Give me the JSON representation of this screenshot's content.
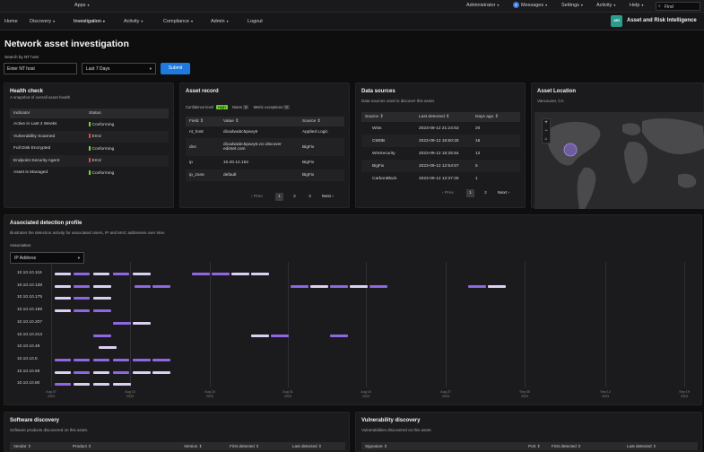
{
  "topbar": {
    "apps": "Apps",
    "administrator": "Administrator",
    "messages_count": "6",
    "messages": "Messages",
    "settings": "Settings",
    "activity": "Activity",
    "help": "Help",
    "find_placeholder": "Find"
  },
  "nav": {
    "home": "Home",
    "discovery": "Discovery",
    "investigation": "Investigation",
    "activity": "Activity",
    "compliance": "Compliance",
    "admin": "Admin",
    "logout": "Logout",
    "app_badge": "ARI",
    "app_name": "Asset and Risk Intelligence"
  },
  "page": {
    "title": "Network asset investigation",
    "search_label": "Search by NT host",
    "search_placeholder": "Enter NT host",
    "range_value": "Last 7 Days",
    "submit": "Submit"
  },
  "health": {
    "title": "Health check",
    "subtitle": "A snapshot of overall asset health",
    "col_indicator": "Indicator",
    "col_status": "Status",
    "rows": [
      {
        "indicator": "Active in Last 2 Weeks",
        "status": "Conforming",
        "color": "#7bd13a"
      },
      {
        "indicator": "Vulnerability Scanned",
        "status": "Error",
        "color": "#e0443e"
      },
      {
        "indicator": "Full Disk Encrypted",
        "status": "Conforming",
        "color": "#7bd13a"
      },
      {
        "indicator": "Endpoint Security Agent",
        "status": "Error",
        "color": "#e0443e"
      },
      {
        "indicator": "Asset is Managed",
        "status": "Conforming",
        "color": "#7bd13a"
      }
    ]
  },
  "record": {
    "title": "Asset record",
    "confidence_label": "Confidence level",
    "confidence_value": "High",
    "notes_label": "Notes",
    "notes_count": "0",
    "metric_label": "Metric exceptions",
    "metric_count": "0",
    "col_field": "Field",
    "col_value": "Value",
    "col_source": "Source",
    "rows": [
      {
        "field": "nt_host",
        "value": "dicadwabc5pavy6",
        "source": "Applied Logic"
      },
      {
        "field": "dns",
        "value": "dicadwabc5pavy6.vcr.discover",
        "value2": "edintel.com",
        "source": "BigFix"
      },
      {
        "field": "ip",
        "value": "10.20.12.152",
        "source": "BigFix"
      },
      {
        "field": "ip_zone",
        "value": "default",
        "source": "BigFix"
      }
    ],
    "prev": "Prev",
    "pages": [
      "1",
      "2",
      "3"
    ],
    "next": "Next"
  },
  "sources": {
    "title": "Data sources",
    "subtitle": "Data sources used to discover this asset.",
    "col_source": "Source",
    "col_last": "Last detected",
    "col_days": "Days ago",
    "rows": [
      {
        "source": "Wiss",
        "last": "2023-09-12 21:24:53",
        "days": "20"
      },
      {
        "source": "CMDB",
        "last": "2023-09-12 16:50:25",
        "days": "16"
      },
      {
        "source": "WinSecurity",
        "last": "2023-09-12 15:25:54",
        "days": "12"
      },
      {
        "source": "BigFix",
        "last": "2023-09-12 12:54:57",
        "days": "5"
      },
      {
        "source": "CarbonBlack",
        "last": "2023-09-12 12:37:25",
        "days": "1"
      }
    ],
    "prev": "Prev",
    "pages": [
      "1",
      "2"
    ],
    "next": "Next"
  },
  "location": {
    "title": "Asset Location",
    "subtitle": "Vancouver, CA",
    "zoom_in": "+",
    "zoom_out": "−"
  },
  "detection": {
    "title": "Associated detection profile",
    "subtitle": "Illustrates the detection activity for associated Users, IP and MAC addresses over time.",
    "assoc_label": "Association",
    "assoc_value": "IP Address",
    "color_light": "#d9d0f2",
    "color_purple": "#8f67e3",
    "rows": [
      "10.10.10.116",
      "10.10.10.138",
      "10.10.10.175",
      "10.10.10.198",
      "10.10.10.207",
      "10.10.10.213",
      "10.10.10.48",
      "10.10.10.5",
      "10.10.10.59",
      "10.10.10.80"
    ],
    "xticks": [
      {
        "m": "Aug 07",
        "y": "2023"
      },
      {
        "m": "Aug 15",
        "y": "2023"
      },
      {
        "m": "Aug 24",
        "y": "2023"
      },
      {
        "m": "Aug 31",
        "y": "2023"
      },
      {
        "m": "Aug 16",
        "y": "2023"
      },
      {
        "m": "Aug 27",
        "y": "2023"
      },
      {
        "m": "Sep 05",
        "y": "2023"
      },
      {
        "m": "Sep 12",
        "y": "2023"
      },
      {
        "m": "Sep 19",
        "y": "2023"
      }
    ]
  },
  "software": {
    "title": "Software discovery",
    "subtitle": "Software products discovered on this asset.",
    "col_vendor": "Vendor",
    "col_product": "Product",
    "col_version": "Version",
    "col_first": "First detected",
    "col_last": "Last detected"
  },
  "vuln": {
    "title": "Vulnerability discovery",
    "subtitle": "Vulnerabilities discovered on this asset.",
    "col_signature": "Signature",
    "col_port": "Port",
    "col_first": "First detected",
    "col_last": "Last detected"
  }
}
